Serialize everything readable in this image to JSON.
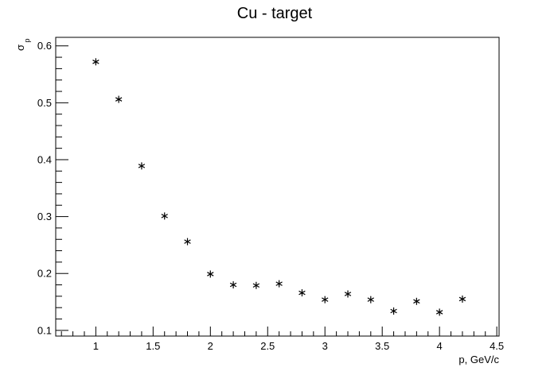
{
  "chart_data": {
    "type": "scatter",
    "title": "Cu - target",
    "xlabel": "p, GeV/c",
    "ylabel_main": "σ",
    "ylabel_sub": "p",
    "xlim": [
      0.65,
      4.52
    ],
    "ylim": [
      0.09,
      0.615
    ],
    "x_ticks": [
      1,
      1.5,
      2,
      2.5,
      3,
      3.5,
      4,
      4.5
    ],
    "x_tick_labels": [
      "1",
      "1.5",
      "2",
      "2.5",
      "3",
      "3.5",
      "4",
      "4.5"
    ],
    "y_ticks": [
      0.1,
      0.2,
      0.3,
      0.4,
      0.5,
      0.6
    ],
    "y_tick_labels": [
      "0.1",
      "0.2",
      "0.3",
      "0.4",
      "0.5",
      "0.6"
    ],
    "marker": "asterisk",
    "grid": false,
    "series": [
      {
        "x": [
          1.0,
          1.2,
          1.4,
          1.6,
          1.8,
          2.0,
          2.2,
          2.4,
          2.6,
          2.8,
          3.0,
          3.2,
          3.4,
          3.6,
          3.8,
          4.0,
          4.2
        ],
        "y": [
          0.572,
          0.506,
          0.389,
          0.301,
          0.256,
          0.199,
          0.18,
          0.179,
          0.182,
          0.166,
          0.154,
          0.164,
          0.154,
          0.134,
          0.151,
          0.132,
          0.155
        ]
      }
    ]
  }
}
